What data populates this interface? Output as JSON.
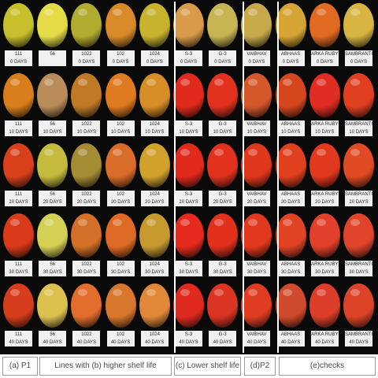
{
  "colors": {
    "background": "#0a0a0a",
    "tag_fill": "#f0f0f0",
    "divider": "#ffffff"
  },
  "columns": [
    {
      "group": "P1",
      "fruit_colors": [
        "#c8bf2c",
        "#d97e1c",
        "#d8401c",
        "#d83a1a",
        "#d63d1c"
      ]
    },
    {
      "group": "lines",
      "fruit_colors": [
        "#e3dc47",
        "#ba8c5a",
        "#c4bb3c",
        "#d3d054",
        "#dcc050"
      ]
    },
    {
      "group": "lines",
      "fruit_colors": [
        "#b1ac2f",
        "#c07a26",
        "#a68b35",
        "#d36f26",
        "#e26d2d"
      ]
    },
    {
      "group": "lines",
      "fruit_colors": [
        "#d88a28",
        "#e07a20",
        "#d86c28",
        "#dc6a25",
        "#d8772c"
      ]
    },
    {
      "group": "lines",
      "fruit_colors": [
        "#c8b22e",
        "#d88e26",
        "#d2a12c",
        "#c79a30",
        "#e08838"
      ]
    },
    {
      "group": "lower",
      "fruit_colors": [
        "#d99a4a",
        "#e22a1c",
        "#e22a1c",
        "#e62a1e",
        "#e02a20"
      ]
    },
    {
      "group": "lower",
      "fruit_colors": [
        "#c7b552",
        "#e2321e",
        "#e2321e",
        "#e2301c",
        "#da3422"
      ]
    },
    {
      "group": "P2",
      "fruit_colors": [
        "#c8a94a",
        "#d4582a",
        "#e0381c",
        "#e2381e",
        "#e03c22"
      ]
    },
    {
      "group": "checks",
      "fruit_colors": [
        "#d6a432",
        "#d6461e",
        "#e0401e",
        "#e04224",
        "#d04a2c"
      ]
    },
    {
      "group": "checks",
      "fruit_colors": [
        "#e06a22",
        "#e02c22",
        "#e2381e",
        "#e2402a",
        "#dc3e2a"
      ]
    },
    {
      "group": "checks",
      "fruit_colors": [
        "#d8b442",
        "#e04020",
        "#e04a24",
        "#e0442a",
        "#dc4428"
      ]
    }
  ],
  "tags": [
    [
      [
        "111",
        "0 DAYS"
      ],
      [
        "56",
        ""
      ],
      [
        "1022",
        "0 DAYS"
      ],
      [
        "102",
        "0 DAYS"
      ],
      [
        "1024",
        "0 DAYS"
      ],
      [
        "S-3",
        "0 DAYS"
      ],
      [
        "G-3",
        "0 DAYS"
      ],
      [
        "VAIBHAV",
        "0 DAYS"
      ],
      [
        "ABHAAS",
        "0 DAYS"
      ],
      [
        "ARKA RUBY",
        "0 DAYS"
      ],
      [
        "SAMBRANTI",
        "0 DAYS"
      ]
    ],
    [
      [
        "111",
        "10 DAYS"
      ],
      [
        "56",
        "10 DAYS"
      ],
      [
        "1022",
        "10 DAYS"
      ],
      [
        "102",
        "10 DAYS"
      ],
      [
        "1024",
        "10 DAYS"
      ],
      [
        "S-3",
        "10 DAYS"
      ],
      [
        "G-3",
        "10 DAYS"
      ],
      [
        "VAIBHAV",
        "10 DAYS"
      ],
      [
        "ABHAAS",
        "10 DAYS"
      ],
      [
        "ARKA RUBY",
        "10 DAYS"
      ],
      [
        "SAMBRANTI",
        "10 DAYS"
      ]
    ],
    [
      [
        "111",
        "20 DAYS"
      ],
      [
        "56",
        "20 DAYS"
      ],
      [
        "1022",
        "20 DAYS"
      ],
      [
        "102",
        "20 DAYS"
      ],
      [
        "1024",
        "20 DAYS"
      ],
      [
        "S-3",
        "20 DAYS"
      ],
      [
        "G-3",
        "20 DAYS"
      ],
      [
        "VAIBHAV",
        "20 DAYS"
      ],
      [
        "ABHAAS",
        "20 DAYS"
      ],
      [
        "ARKA RUBY",
        "20 DAYS"
      ],
      [
        "SAMBRANTI",
        "20 DAYS"
      ]
    ],
    [
      [
        "111",
        "30 DAYS"
      ],
      [
        "56",
        "30 DAYS"
      ],
      [
        "1022",
        "30 DAYS"
      ],
      [
        "102",
        "30 DAYS"
      ],
      [
        "1024",
        "30 DAYS"
      ],
      [
        "S-3",
        "30 DAYS"
      ],
      [
        "G-3",
        "30 DAYS"
      ],
      [
        "VAIBHAV",
        "30 DAYS"
      ],
      [
        "ABHAAS",
        "30 DAYS"
      ],
      [
        "ARKA RUBY",
        "30 DAYS"
      ],
      [
        "SAMBRANTI",
        "30 DAYS"
      ]
    ],
    [
      [
        "111",
        "40 DAYS"
      ],
      [
        "56",
        "40 DAYS"
      ],
      [
        "1022",
        "40 DAYS"
      ],
      [
        "102",
        "40 DAYS"
      ],
      [
        "1024",
        "40 DAYS"
      ],
      [
        "S-3",
        "40 DAYS"
      ],
      [
        "G-3",
        "40 DAYS"
      ],
      [
        "VAIBHAV",
        "40 DAYS"
      ],
      [
        "ABHAAS",
        "40 DAYS"
      ],
      [
        "ARKA RUBY",
        "40 DAYS"
      ],
      [
        "SAMBRANTI",
        "40 DAYS"
      ]
    ]
  ],
  "caption": {
    "p1": "(a) P1",
    "lines": "Lines with  (b) higher shelf life",
    "lower": "(c) Lower shelf life",
    "p2": "(d)P2",
    "checks": "(e)checks"
  }
}
